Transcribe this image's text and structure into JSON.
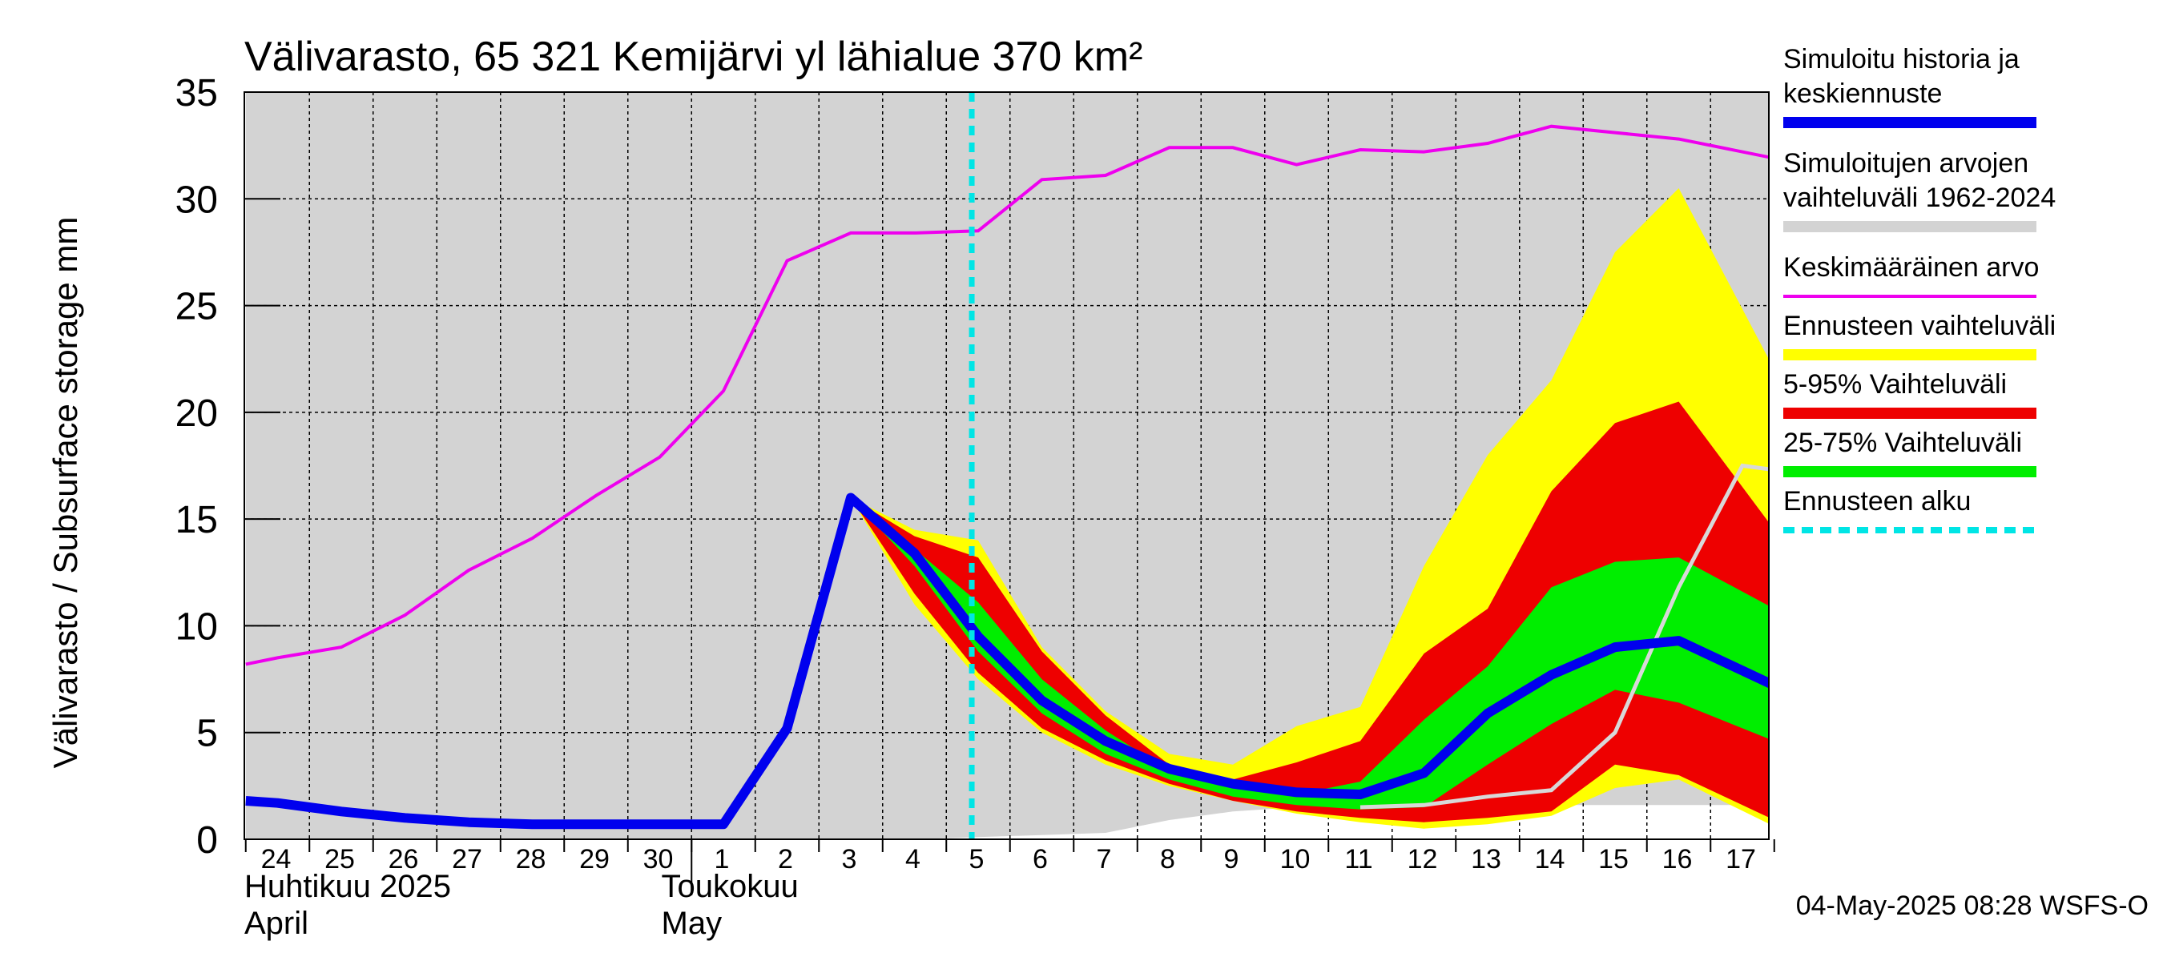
{
  "chart_data": {
    "type": "area",
    "title": "Välivarasto, 65 321 Kemijärvi yl lähialue 370 km²",
    "ylabel": "Välivarasto / Subsurface storage  mm",
    "ylim": [
      0,
      35
    ],
    "yticks": [
      0,
      5,
      10,
      15,
      20,
      25,
      30,
      35
    ],
    "x_start_date": "2025-04-24",
    "x_days": [
      "24",
      "25",
      "26",
      "27",
      "28",
      "29",
      "30",
      "1",
      "2",
      "3",
      "4",
      "5",
      "6",
      "7",
      "8",
      "9",
      "10",
      "11",
      "12",
      "13",
      "14",
      "15",
      "16",
      "17"
    ],
    "month_labels": [
      {
        "line1": "Huhtikuu  2025",
        "line2": "April",
        "at_day": 0
      },
      {
        "line1": "Toukokuu",
        "line2": "May",
        "at_day": 8
      }
    ],
    "forecast_start_day": 10.9,
    "grid": true,
    "footer": "04-May-2025 08:28 WSFS-O",
    "colors": {
      "background_range": "#d3d3d3",
      "mean": "#ee00ee",
      "simulated": "#0000ee",
      "forecast_range": "#ffff00",
      "p5_95": "#ee0000",
      "p25_75": "#00ee00",
      "forecast_start": "#00e5e5",
      "gray_line": "#d8d8d8"
    },
    "legend": [
      {
        "label_lines": [
          "Simuloitu historia ja",
          "keskiennuste"
        ],
        "color": "#0000ee",
        "style": "thick"
      },
      {
        "label_lines": [
          "Simuloitujen arvojen",
          "vaihteluväli 1962-2024"
        ],
        "color": "#d3d3d3",
        "style": "thick"
      },
      {
        "label_lines": [
          "Keskimääräinen arvo"
        ],
        "color": "#ee00ee",
        "style": "thin"
      },
      {
        "label_lines": [
          "Ennusteen vaihteluväli"
        ],
        "color": "#ffff00",
        "style": "thick"
      },
      {
        "label_lines": [
          "5-95% Vaihteluväli"
        ],
        "color": "#ee0000",
        "style": "thick"
      },
      {
        "label_lines": [
          "25-75% Vaihteluväli"
        ],
        "color": "#00ee00",
        "style": "thick"
      },
      {
        "label_lines": [
          "Ennusteen alku"
        ],
        "color": "#00e5e5",
        "style": "dashed"
      }
    ],
    "series": [
      {
        "name": "Simuloitujen arvojen vaihteluväli 1962-2024",
        "kind": "band",
        "x": [
          -0.5,
          10,
          11,
          12,
          13,
          14,
          15,
          16,
          17,
          18,
          19,
          20,
          21,
          22,
          23.5
        ],
        "lower": [
          0,
          0,
          0.1,
          0.2,
          0.3,
          0.9,
          1.3,
          1.5,
          1.6,
          1.6,
          1.6,
          1.6,
          1.6,
          1.6,
          1.6
        ],
        "upper": [
          35,
          35,
          35,
          35,
          35,
          35,
          35,
          35,
          35,
          35,
          35,
          35,
          35,
          35,
          35
        ]
      },
      {
        "name": "Ennusteen vaihteluväli",
        "kind": "band",
        "x": [
          9,
          10,
          11,
          12,
          13,
          14,
          15,
          16,
          17,
          18,
          19,
          20,
          21,
          22,
          23.5
        ],
        "lower": [
          16,
          11,
          7.5,
          5.0,
          3.5,
          2.5,
          1.8,
          1.2,
          0.8,
          0.5,
          0.7,
          1.1,
          2.4,
          2.8,
          0.6
        ],
        "upper": [
          16,
          14.5,
          14.0,
          9.0,
          6.0,
          4.0,
          3.5,
          5.3,
          6.2,
          12.8,
          18.0,
          21.5,
          27.5,
          30.5,
          22.0
        ]
      },
      {
        "name": "5-95% Vaihteluväli",
        "kind": "band",
        "x": [
          9,
          10,
          11,
          12,
          13,
          14,
          15,
          16,
          17,
          18,
          19,
          20,
          21,
          22,
          23.5
        ],
        "lower": [
          16,
          11.5,
          7.8,
          5.2,
          3.7,
          2.6,
          1.8,
          1.3,
          1.0,
          0.8,
          1.0,
          1.3,
          3.5,
          3.0,
          0.9
        ],
        "upper": [
          16,
          14.2,
          13.2,
          8.8,
          5.8,
          3.5,
          2.8,
          3.6,
          4.6,
          8.7,
          10.8,
          16.3,
          19.5,
          20.5,
          14.5
        ]
      },
      {
        "name": "25-75% Vaihteluväli",
        "kind": "band",
        "x": [
          9,
          10,
          11,
          12,
          13,
          14,
          15,
          16,
          17,
          18,
          19,
          20,
          21,
          22,
          23.5
        ],
        "lower": [
          16,
          12.8,
          8.8,
          5.9,
          4.0,
          2.8,
          2.0,
          1.6,
          1.4,
          1.5,
          3.5,
          5.4,
          7.0,
          6.4,
          4.6
        ],
        "upper": [
          16,
          13.6,
          11.1,
          7.5,
          5.1,
          3.2,
          2.4,
          2.1,
          2.7,
          5.6,
          8.1,
          11.8,
          13.0,
          13.2,
          10.8
        ]
      },
      {
        "name": "Keskimääräinen arvo",
        "kind": "line",
        "x": [
          -0.5,
          0,
          1,
          2,
          3,
          4,
          5,
          6,
          7,
          8,
          9,
          10,
          11,
          12,
          13,
          14,
          15,
          16,
          17,
          18,
          19,
          20,
          21,
          22,
          23.5
        ],
        "values": [
          8.2,
          8.5,
          9.0,
          10.5,
          12.6,
          14.1,
          16.1,
          17.9,
          21.0,
          27.1,
          28.4,
          28.4,
          28.5,
          30.9,
          31.1,
          32.4,
          32.4,
          31.6,
          32.3,
          32.2,
          32.6,
          33.4,
          33.1,
          32.8,
          31.9
        ]
      },
      {
        "name": "gray",
        "kind": "line",
        "x": [
          17,
          18,
          19,
          20,
          21,
          22,
          23,
          23.5
        ],
        "values": [
          1.5,
          1.6,
          2.0,
          2.3,
          5.0,
          11.8,
          17.5,
          17.3
        ]
      },
      {
        "name": "Simuloitu historia ja keskiennuste",
        "kind": "line",
        "x": [
          -0.5,
          0,
          1,
          2,
          3,
          4,
          5,
          6,
          7,
          8,
          9,
          10,
          11,
          12,
          13,
          14,
          15,
          16,
          17,
          18,
          19,
          20,
          21,
          22,
          23.5
        ],
        "values": [
          1.8,
          1.7,
          1.3,
          1.0,
          0.8,
          0.7,
          0.7,
          0.7,
          0.7,
          5.2,
          16.0,
          13.4,
          9.5,
          6.5,
          4.6,
          3.3,
          2.6,
          2.2,
          2.1,
          3.1,
          5.9,
          7.7,
          9.0,
          9.3,
          7.2
        ]
      }
    ]
  }
}
